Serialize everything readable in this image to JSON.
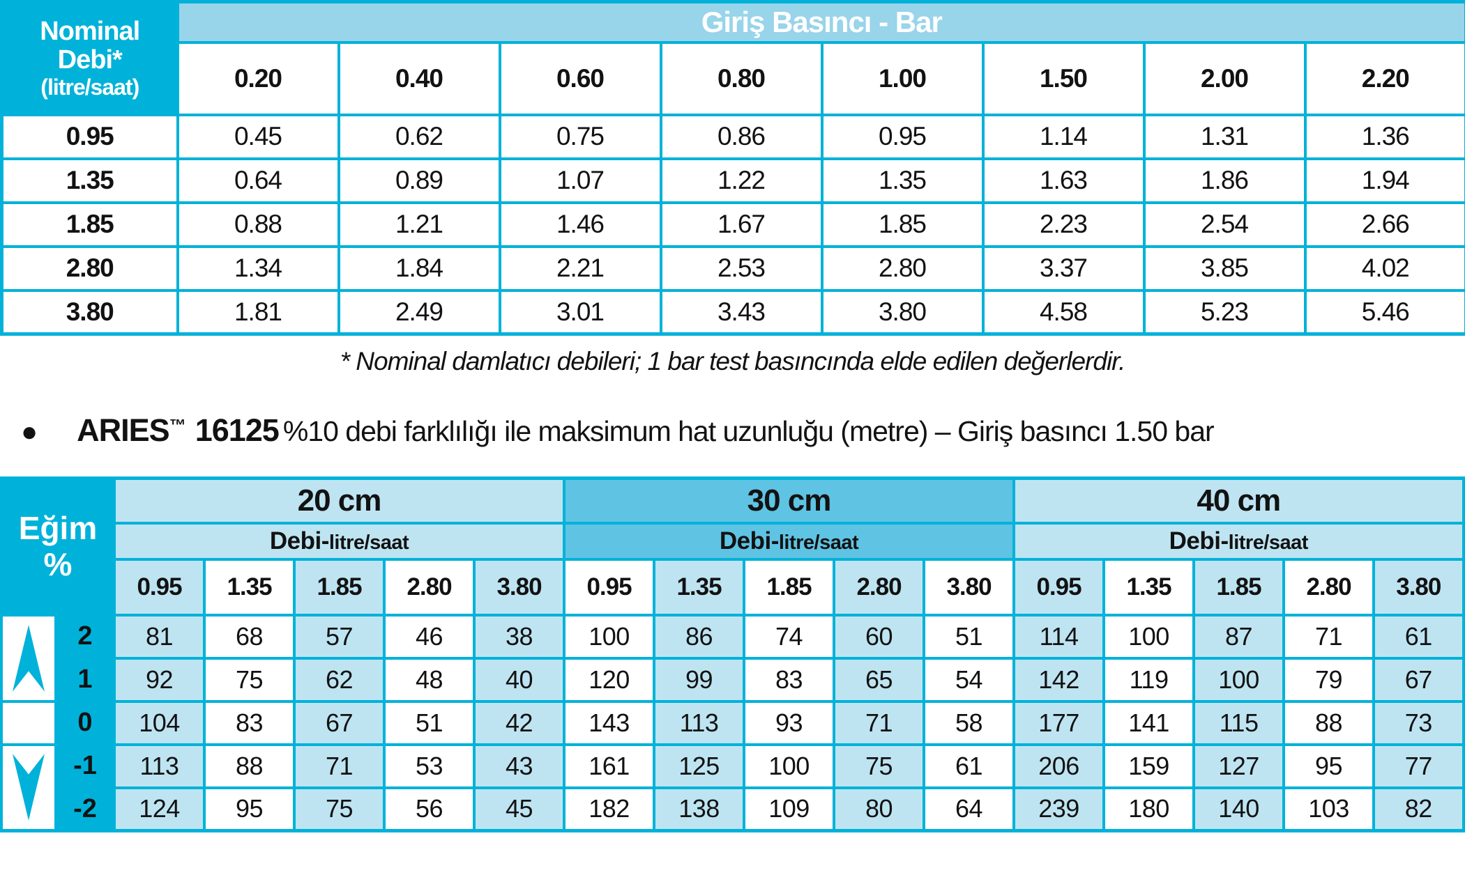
{
  "colors": {
    "cyan": "#00b2d9",
    "band_blue": "#98d4ea",
    "light_blue": "#bee4f2",
    "medium_blue": "#5fc3e4",
    "text": "#121212"
  },
  "table1": {
    "corner": {
      "line1": "Nominal",
      "line2": "Debi*",
      "line3": "(litre/saat)"
    },
    "band_title": "Giriş Basıncı - Bar",
    "columns": [
      "0.20",
      "0.40",
      "0.60",
      "0.80",
      "1.00",
      "1.50",
      "2.00",
      "2.20"
    ],
    "rows": [
      {
        "label": "0.95",
        "values": [
          "0.45",
          "0.62",
          "0.75",
          "0.86",
          "0.95",
          "1.14",
          "1.31",
          "1.36"
        ]
      },
      {
        "label": "1.35",
        "values": [
          "0.64",
          "0.89",
          "1.07",
          "1.22",
          "1.35",
          "1.63",
          "1.86",
          "1.94"
        ]
      },
      {
        "label": "1.85",
        "values": [
          "0.88",
          "1.21",
          "1.46",
          "1.67",
          "1.85",
          "2.23",
          "2.54",
          "2.66"
        ]
      },
      {
        "label": "2.80",
        "values": [
          "1.34",
          "1.84",
          "2.21",
          "2.53",
          "2.80",
          "3.37",
          "3.85",
          "4.02"
        ]
      },
      {
        "label": "3.80",
        "values": [
          "1.81",
          "2.49",
          "3.01",
          "3.43",
          "3.80",
          "4.58",
          "5.23",
          "5.46"
        ]
      }
    ]
  },
  "footnote": "* Nominal damlatıcı debileri; 1 bar test basıncında elde edilen değerlerdir.",
  "bullet": {
    "marker": "●",
    "brand": "ARIES",
    "trademark": "™",
    "model": "16125",
    "description": "%10 debi farklılığı ile maksimum hat uzunluğu (metre) – Giriş basıncı 1.50  bar"
  },
  "table2": {
    "slope_header": {
      "line1": "Eğim",
      "line2": "%"
    },
    "debi_label": {
      "main": "Debi-",
      "unit": "litre/saat"
    },
    "sections": [
      {
        "label": "20 cm",
        "flows": [
          "0.95",
          "1.35",
          "1.85",
          "2.80",
          "3.80"
        ]
      },
      {
        "label": "30 cm",
        "flows": [
          "0.95",
          "1.35",
          "1.85",
          "2.80",
          "3.80"
        ]
      },
      {
        "label": "40 cm",
        "flows": [
          "0.95",
          "1.35",
          "1.85",
          "2.80",
          "3.80"
        ]
      }
    ],
    "rows": [
      {
        "slope": "2",
        "values": [
          "81",
          "68",
          "57",
          "46",
          "38",
          "100",
          "86",
          "74",
          "60",
          "51",
          "114",
          "100",
          "87",
          "71",
          "61"
        ]
      },
      {
        "slope": "1",
        "values": [
          "92",
          "75",
          "62",
          "48",
          "40",
          "120",
          "99",
          "83",
          "65",
          "54",
          "142",
          "119",
          "100",
          "79",
          "67"
        ]
      },
      {
        "slope": "0",
        "values": [
          "104",
          "83",
          "67",
          "51",
          "42",
          "143",
          "113",
          "93",
          "71",
          "58",
          "177",
          "141",
          "115",
          "88",
          "73"
        ]
      },
      {
        "slope": "-1",
        "values": [
          "113",
          "88",
          "71",
          "53",
          "43",
          "161",
          "125",
          "100",
          "75",
          "61",
          "206",
          "159",
          "127",
          "95",
          "77"
        ]
      },
      {
        "slope": "-2",
        "values": [
          "124",
          "95",
          "75",
          "56",
          "45",
          "182",
          "138",
          "109",
          "80",
          "64",
          "239",
          "180",
          "140",
          "103",
          "82"
        ]
      }
    ]
  }
}
